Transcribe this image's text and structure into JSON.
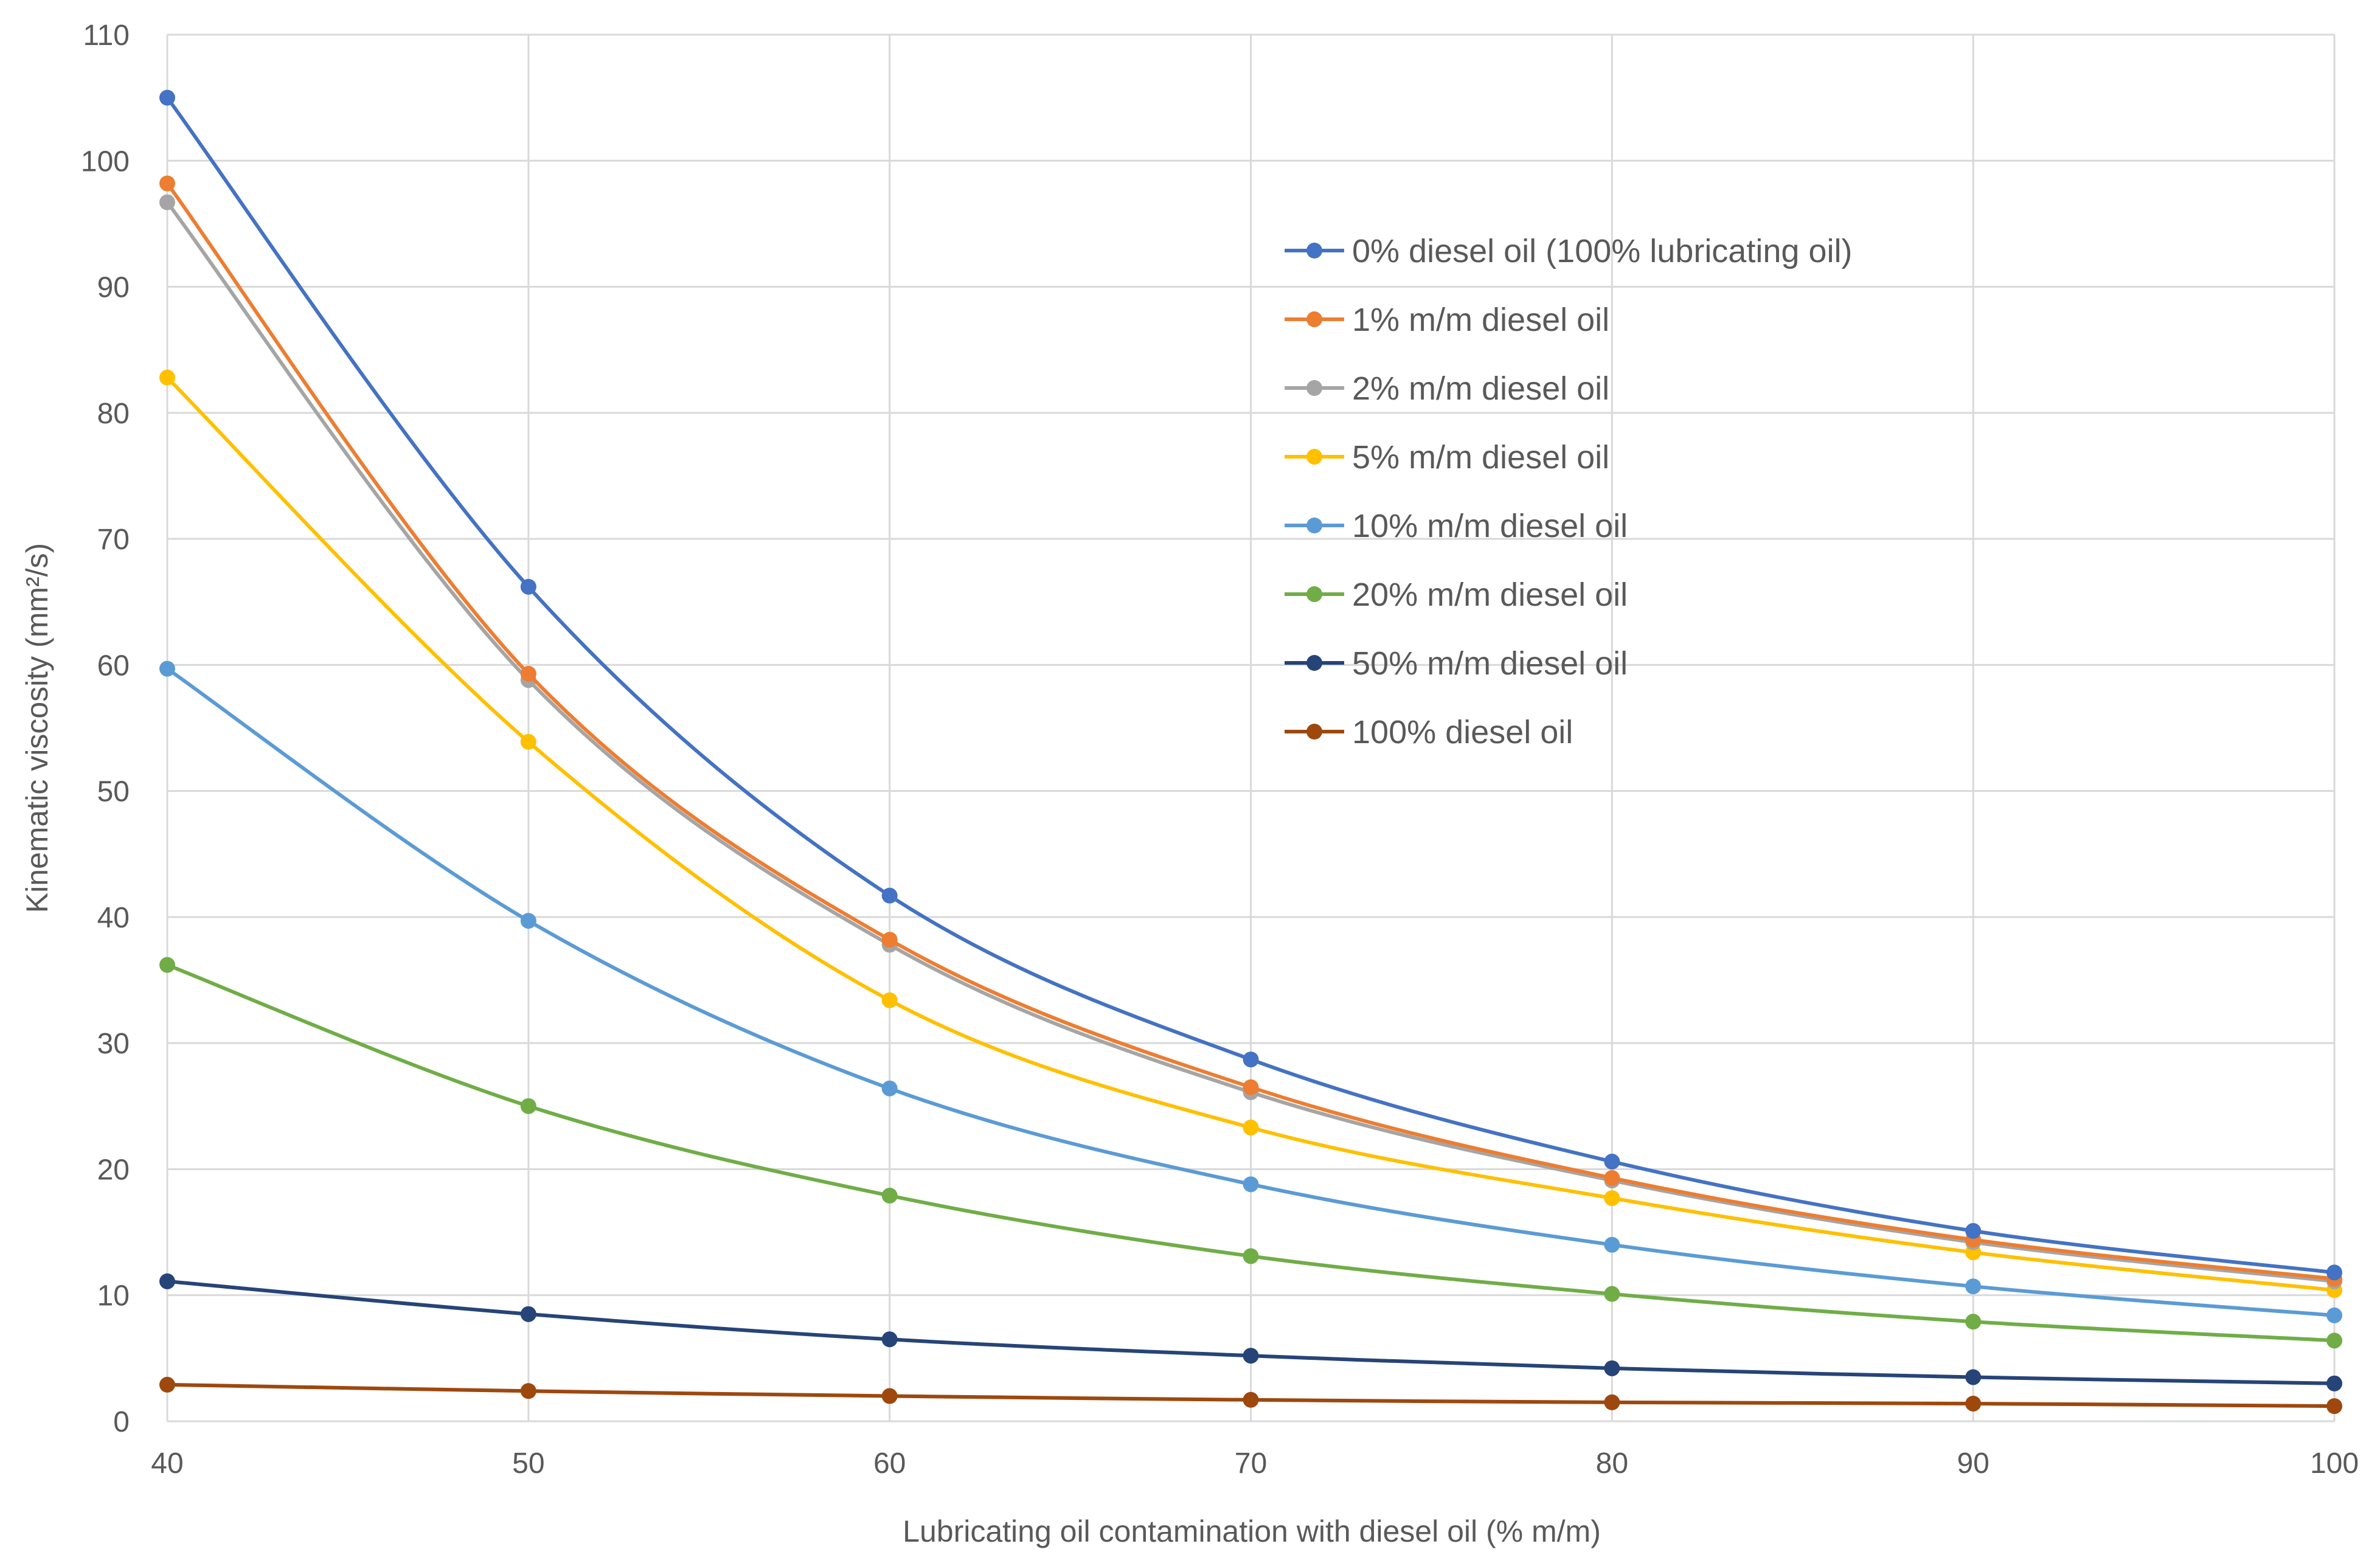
{
  "chart_data": {
    "type": "line",
    "title": "",
    "xlabel": "Lubricating oil contamination with diesel oil (% m/m)",
    "ylabel": "Kinematic viscosity (mm²/s)",
    "x": [
      40,
      50,
      60,
      70,
      80,
      90,
      100
    ],
    "xlim": [
      40,
      100
    ],
    "ylim": [
      0,
      110
    ],
    "xticks": [
      40,
      50,
      60,
      70,
      80,
      90,
      100
    ],
    "yticks": [
      0,
      10,
      20,
      30,
      40,
      50,
      60,
      70,
      80,
      90,
      100,
      110
    ],
    "grid": true,
    "legend_position": "upper-right-inside",
    "series": [
      {
        "name": "0% diesel oil (100% lubricating oil)",
        "color": "#4472C4",
        "values": [
          105.0,
          66.2,
          41.7,
          28.7,
          20.6,
          15.1,
          11.8
        ]
      },
      {
        "name": "1% m/m diesel oil",
        "color": "#ED7D31",
        "values": [
          98.2,
          59.3,
          38.2,
          26.5,
          19.3,
          14.4,
          11.3
        ]
      },
      {
        "name": "2% m/m diesel oil",
        "color": "#A5A5A5",
        "values": [
          96.7,
          58.8,
          37.8,
          26.1,
          19.1,
          14.2,
          11.1
        ]
      },
      {
        "name": "5% m/m diesel oil",
        "color": "#FFC000",
        "values": [
          82.8,
          53.9,
          33.4,
          23.3,
          17.7,
          13.4,
          10.4
        ]
      },
      {
        "name": "10% m/m diesel oil",
        "color": "#5B9BD5",
        "values": [
          59.7,
          39.7,
          26.4,
          18.8,
          14.0,
          10.7,
          8.4
        ]
      },
      {
        "name": "20% m/m diesel oil",
        "color": "#70AD47",
        "values": [
          36.2,
          25.0,
          17.9,
          13.1,
          10.1,
          7.9,
          6.4
        ]
      },
      {
        "name": "50% m/m diesel oil",
        "color": "#264478",
        "values": [
          11.1,
          8.5,
          6.5,
          5.2,
          4.2,
          3.5,
          3.0
        ]
      },
      {
        "name": "100% diesel oil",
        "color": "#9E480E",
        "values": [
          2.9,
          2.4,
          2.0,
          1.7,
          1.5,
          1.4,
          1.2
        ]
      }
    ]
  }
}
